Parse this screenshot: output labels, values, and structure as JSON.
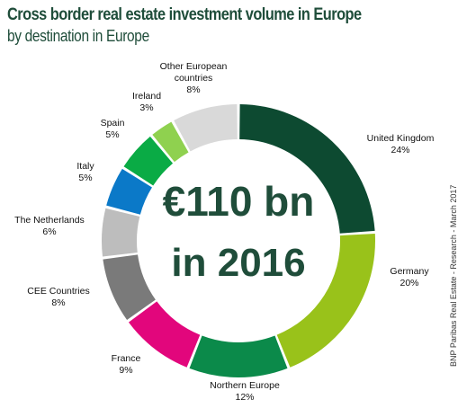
{
  "title": "Cross border real estate investment volume in Europe",
  "subtitle": "by destination in Europe",
  "source": "BNP Paribas Real Estate - Research - March 2017",
  "chart_data": {
    "type": "pie",
    "donut": true,
    "center_line1": "€110 bn",
    "center_line2": "in 2016",
    "slices": [
      {
        "name": "United Kingdom",
        "lines": [
          "United Kingdom"
        ],
        "pct_label": "24%",
        "value": 24,
        "color": "#0d4a31"
      },
      {
        "name": "Germany",
        "lines": [
          "Germany"
        ],
        "pct_label": "20%",
        "value": 20,
        "color": "#99c21a"
      },
      {
        "name": "Northern Europe",
        "lines": [
          "Northern Europe"
        ],
        "pct_label": "12%",
        "value": 12,
        "color": "#0b8a4a"
      },
      {
        "name": "France",
        "lines": [
          "France"
        ],
        "pct_label": "9%",
        "value": 9,
        "color": "#e2067c"
      },
      {
        "name": "CEE Countries",
        "lines": [
          "CEE Countries"
        ],
        "pct_label": "8%",
        "value": 8,
        "color": "#7a7a7a"
      },
      {
        "name": "The Netherlands",
        "lines": [
          "The Netherlands"
        ],
        "pct_label": "6%",
        "value": 6,
        "color": "#bdbdbd"
      },
      {
        "name": "Italy",
        "lines": [
          "Italy"
        ],
        "pct_label": "5%",
        "value": 5,
        "color": "#0b79c8"
      },
      {
        "name": "Spain",
        "lines": [
          "Spain"
        ],
        "pct_label": "5%",
        "value": 5,
        "color": "#0aab45"
      },
      {
        "name": "Ireland",
        "lines": [
          "Ireland"
        ],
        "pct_label": "3%",
        "value": 3,
        "color": "#8fd14f"
      },
      {
        "name": "Other European countries",
        "lines": [
          "Other European",
          "countries"
        ],
        "pct_label": "8%",
        "value": 8,
        "color": "#d9d9d9"
      }
    ]
  }
}
